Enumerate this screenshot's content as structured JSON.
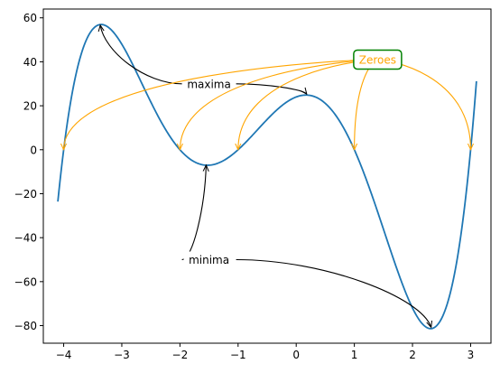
{
  "chart_data": {
    "type": "line",
    "title": "",
    "xlabel": "",
    "ylabel": "",
    "xlim": [
      -4.35,
      3.35
    ],
    "ylim": [
      -88,
      64
    ],
    "x_ticks": [
      -4,
      -3,
      -2,
      -1,
      0,
      1,
      2,
      3
    ],
    "y_ticks": [
      -80,
      -60,
      -40,
      -20,
      0,
      20,
      40,
      60
    ],
    "x_tick_labels": [
      "−4",
      "−3",
      "−2",
      "−1",
      "0",
      "1",
      "2",
      "3"
    ],
    "y_tick_labels": [
      "−80",
      "−60",
      "−40",
      "−20",
      "0",
      "20",
      "40",
      "60"
    ],
    "grid": false,
    "series": [
      {
        "color": "#1f77b4",
        "x_range": [
          -4.1,
          3.1
        ],
        "roots": [
          -4,
          -2,
          -1,
          1,
          3
        ],
        "leading_coefficient": 1,
        "description": "y = (x+4)(x+2)(x+1)(x-1)(x-3)"
      }
    ],
    "annotations": [
      {
        "text": "maxima",
        "color": "#000000",
        "text_at": [
          -1.5,
          30
        ],
        "arrows_to": [
          [
            -3.37,
            56.7
          ],
          [
            0.18,
            25.3
          ]
        ]
      },
      {
        "text": "minima",
        "color": "#000000",
        "text_at": [
          -1.5,
          -50
        ],
        "arrows_to": [
          [
            -1.55,
            -7.0
          ],
          [
            2.32,
            -80.8
          ]
        ]
      },
      {
        "text": "Zeroes",
        "color": "#ffa500",
        "box_color": "#008000",
        "text_at": [
          1.4,
          41
        ],
        "arrows_to": [
          [
            -4,
            0
          ],
          [
            -2,
            0
          ],
          [
            -1,
            0
          ],
          [
            1,
            0
          ],
          [
            3,
            0
          ]
        ]
      }
    ]
  }
}
